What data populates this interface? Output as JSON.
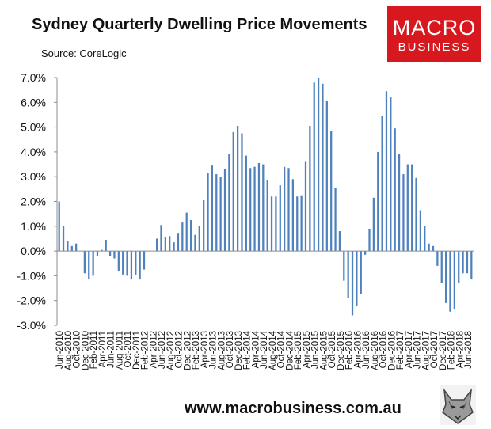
{
  "title": "Sydney Quarterly Dwelling Price Movements",
  "source": "Source: CoreLogic",
  "logo": {
    "line1": "MACRO",
    "line2": "BUSINESS",
    "icon": "wolf-mascot-icon",
    "color": "#d7191f"
  },
  "footer": {
    "url": "www.macrobusiness.com.au"
  },
  "chart_data": {
    "type": "bar",
    "bar_color": "#4f81bd",
    "grid": false,
    "ylim": [
      -3,
      7
    ],
    "yticks": [
      "7.0%",
      "6.0%",
      "5.0%",
      "4.0%",
      "3.0%",
      "2.0%",
      "1.0%",
      "0.0%",
      "-1.0%",
      "-2.0%",
      "-3.0%"
    ],
    "xticks": [
      "Jun-2010",
      "Aug-2010",
      "Oct-2010",
      "Dec-2010",
      "Feb-2011",
      "Apr-2011",
      "Jun-2011",
      "Aug-2011",
      "Oct-2011",
      "Dec-2011",
      "Feb-2012",
      "Apr-2012",
      "Jun-2012",
      "Aug-2012",
      "Oct-2012",
      "Dec-2012",
      "Feb-2013",
      "Apr-2013",
      "Jun-2013",
      "Aug-2013",
      "Oct-2013",
      "Dec-2013",
      "Feb-2014",
      "Apr-2014",
      "Jun-2014",
      "Aug-2014",
      "Oct-2014",
      "Dec-2014",
      "Feb-2015",
      "Apr-2015",
      "Jun-2015",
      "Aug-2015",
      "Oct-2015",
      "Dec-2015",
      "Feb-2016",
      "Apr-2016",
      "Jun-2016",
      "Aug-2016",
      "Oct-2016",
      "Dec-2016",
      "Feb-2017",
      "Apr-2017",
      "Jun-2017",
      "Aug-2017",
      "Oct-2017",
      "Dec-2017",
      "Feb-2018",
      "Apr-2018",
      "Jun-2018"
    ],
    "values": [
      2.0,
      1.0,
      0.4,
      0.2,
      0.3,
      0.0,
      -0.9,
      -1.15,
      -1.0,
      -0.2,
      0.05,
      0.45,
      -0.2,
      -0.3,
      -0.8,
      -0.95,
      -1.0,
      -1.15,
      -0.95,
      -1.15,
      -0.75,
      0.0,
      0.0,
      0.5,
      1.05,
      0.55,
      0.6,
      0.35,
      0.7,
      1.15,
      1.55,
      1.25,
      0.65,
      1.0,
      2.05,
      3.15,
      3.45,
      3.1,
      3.0,
      3.3,
      3.9,
      4.8,
      5.05,
      4.75,
      3.85,
      3.35,
      3.4,
      3.55,
      3.5,
      2.85,
      2.2,
      2.2,
      2.65,
      3.4,
      3.35,
      2.9,
      2.2,
      2.25,
      3.6,
      5.05,
      6.8,
      7.0,
      6.75,
      6.05,
      4.85,
      2.55,
      0.8,
      -1.2,
      -1.9,
      -2.6,
      -2.2,
      -1.75,
      -0.15,
      0.9,
      2.15,
      4.0,
      5.45,
      6.45,
      6.2,
      4.95,
      3.9,
      3.1,
      3.5,
      3.5,
      2.95,
      1.65,
      1.0,
      0.3,
      0.2,
      -0.6,
      -1.3,
      -2.1,
      -2.45,
      -2.35,
      -1.3,
      -0.9,
      -0.9,
      -1.15
    ]
  }
}
